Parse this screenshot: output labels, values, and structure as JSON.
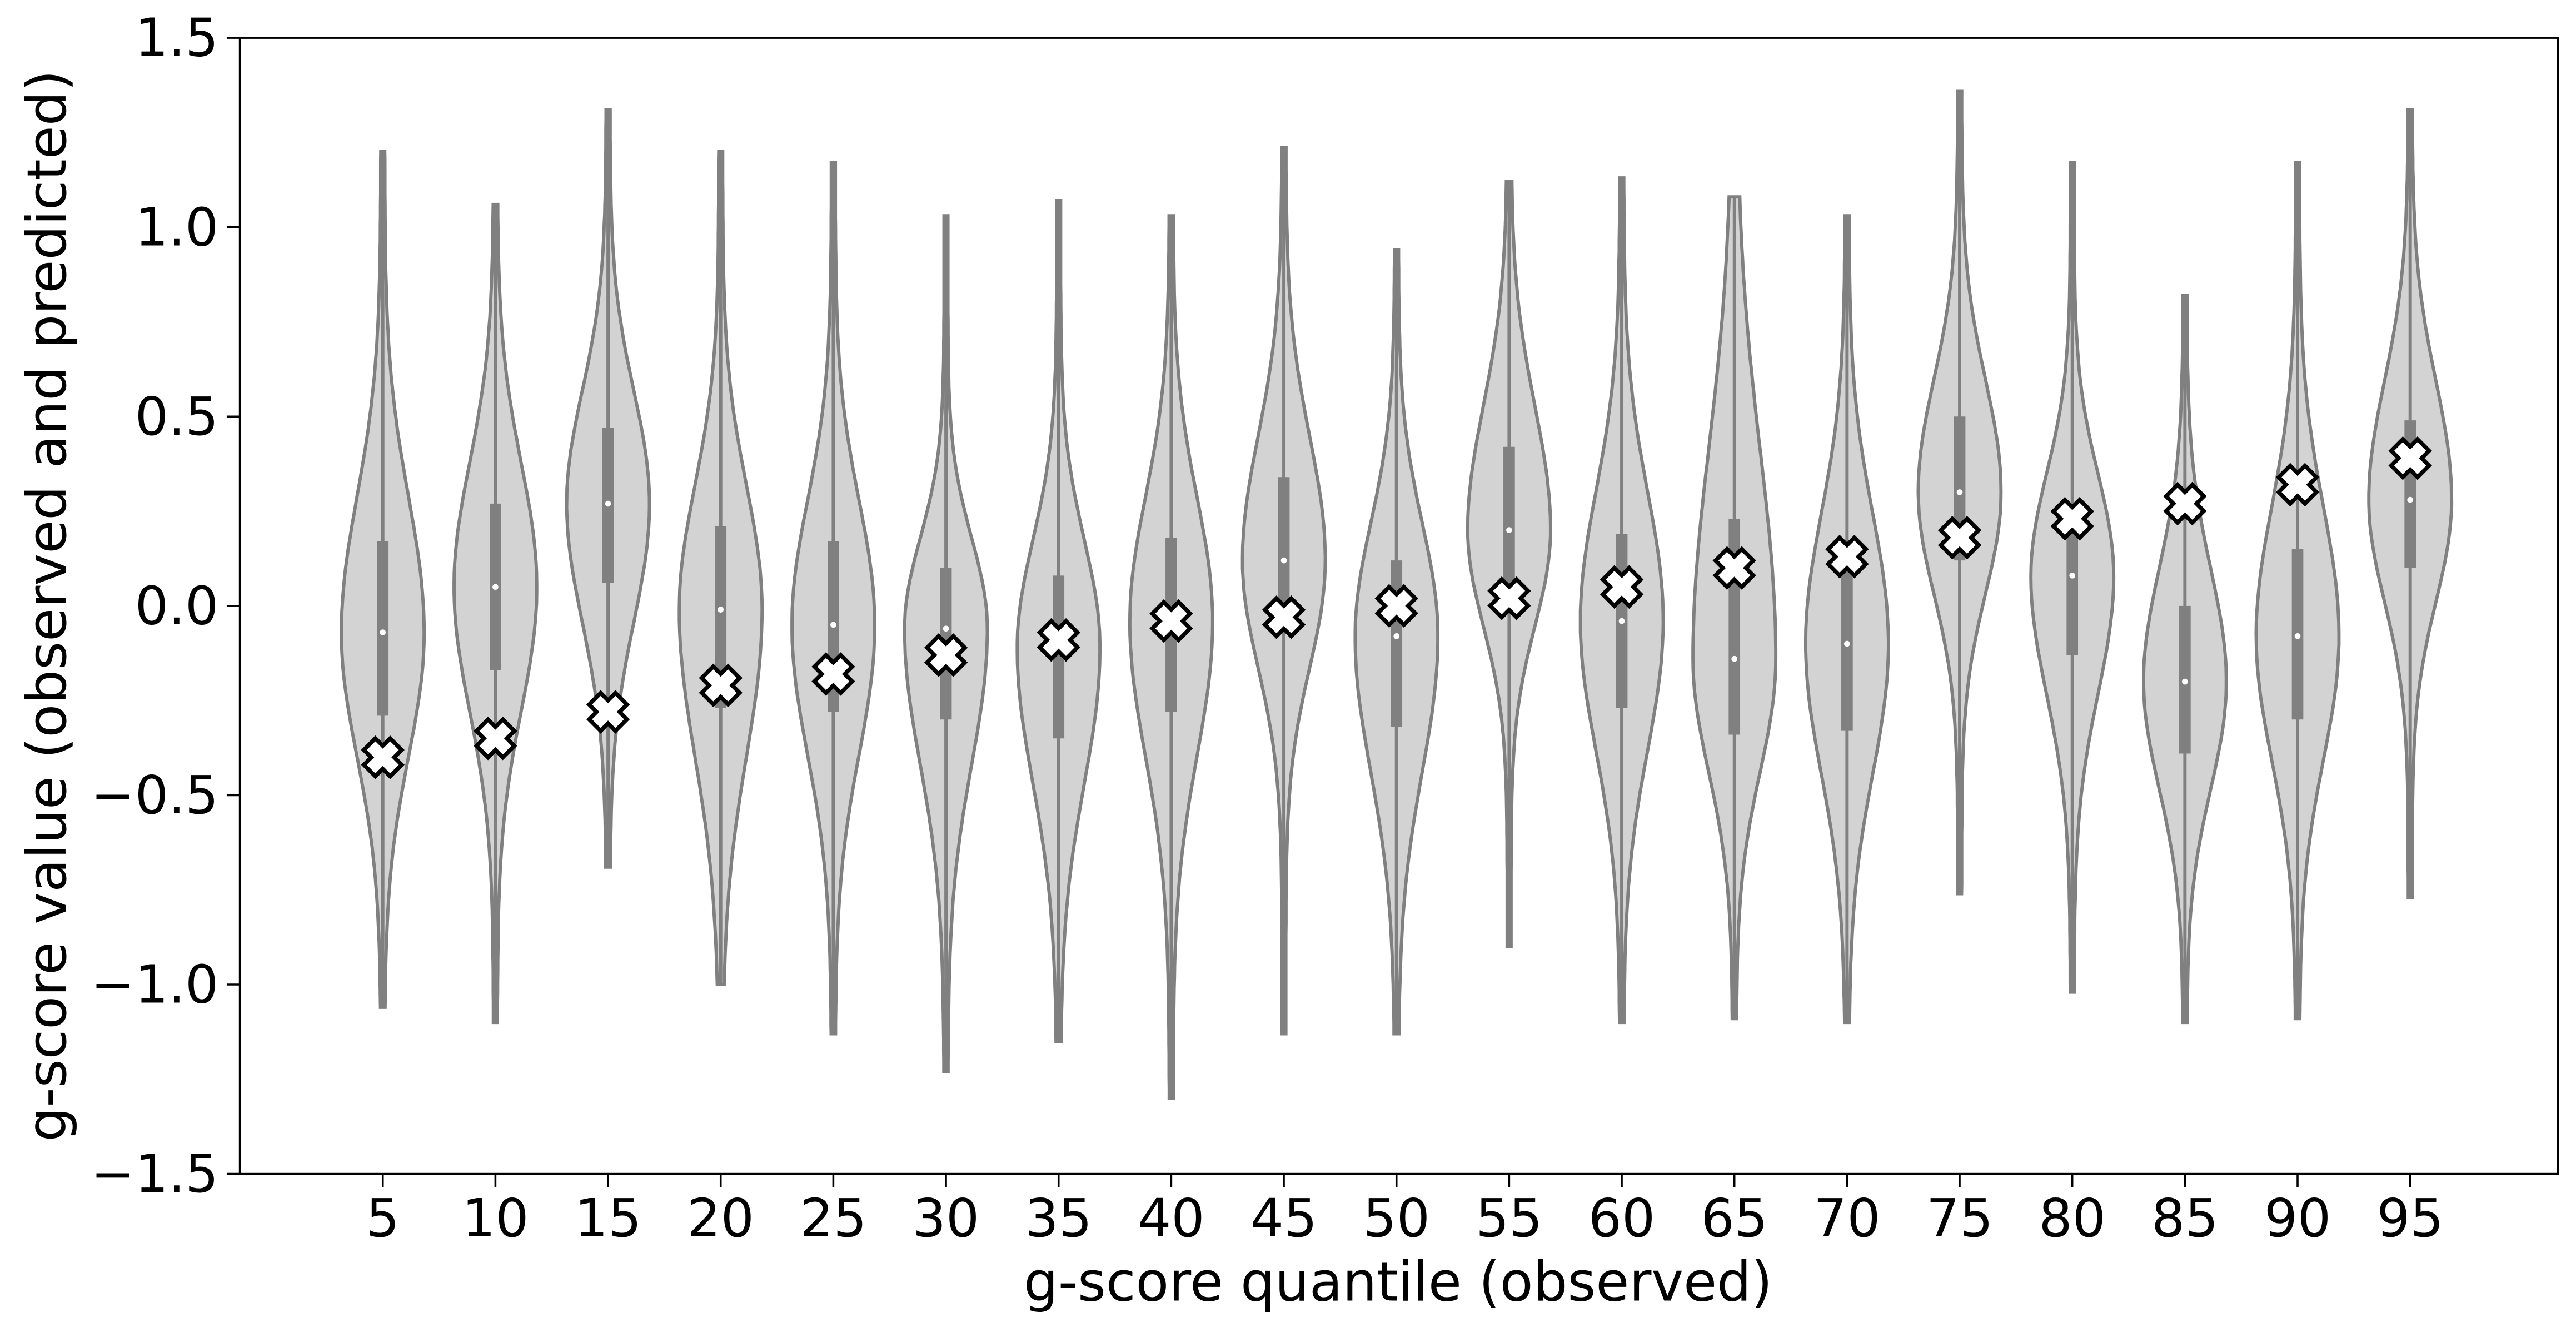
{
  "chart_data": {
    "type": "violin",
    "xlabel": "g-score quantile (observed)",
    "ylabel": "g-score value (observed and predicted)",
    "categories": [
      "5",
      "10",
      "15",
      "20",
      "25",
      "30",
      "35",
      "40",
      "45",
      "50",
      "55",
      "60",
      "65",
      "70",
      "75",
      "80",
      "85",
      "90",
      "95"
    ],
    "max": [
      1.2,
      1.06,
      1.31,
      1.2,
      1.17,
      1.03,
      1.07,
      1.03,
      1.21,
      0.94,
      1.12,
      1.13,
      1.08,
      1.03,
      1.36,
      1.17,
      0.82,
      1.17,
      1.31
    ],
    "q3": [
      0.17,
      0.27,
      0.47,
      0.21,
      0.17,
      0.1,
      0.08,
      0.18,
      0.34,
      0.12,
      0.42,
      0.19,
      0.23,
      0.13,
      0.5,
      0.26,
      0.0,
      0.15,
      0.49
    ],
    "median": [
      -0.07,
      0.05,
      0.27,
      -0.01,
      -0.05,
      -0.06,
      -0.11,
      -0.04,
      0.12,
      -0.08,
      0.2,
      -0.04,
      -0.14,
      -0.1,
      0.3,
      0.08,
      -0.2,
      -0.08,
      0.28
    ],
    "q1": [
      -0.29,
      -0.17,
      0.06,
      -0.27,
      -0.28,
      -0.3,
      -0.35,
      -0.28,
      -0.07,
      -0.32,
      0.03,
      -0.27,
      -0.34,
      -0.33,
      0.12,
      -0.13,
      -0.39,
      -0.3,
      0.1
    ],
    "min": [
      -1.06,
      -1.1,
      -0.69,
      -1.0,
      -1.13,
      -1.23,
      -1.15,
      -1.3,
      -1.13,
      -1.13,
      -0.9,
      -1.1,
      -1.09,
      -1.1,
      -0.76,
      -1.02,
      -1.1,
      -1.09,
      -0.77
    ],
    "markers": [
      -0.4,
      -0.35,
      -0.28,
      -0.21,
      -0.18,
      -0.13,
      -0.09,
      -0.04,
      -0.03,
      0.0,
      0.02,
      0.05,
      0.1,
      0.13,
      0.18,
      0.23,
      0.27,
      0.32,
      0.39
    ],
    "color": "#d3d3d3",
    "edge_color": "#808080",
    "marker_color": "#ffffff",
    "ylim": [
      -1.5,
      1.5
    ],
    "yticks": [
      {
        "value": -1.5,
        "label": "−1.5"
      },
      {
        "value": -1,
        "label": "−1.0"
      },
      {
        "value": -0.5,
        "label": "−0.5"
      },
      {
        "value": 0,
        "label": "0.0"
      },
      0.5,
      {
        "value": 1,
        "label": "1.0"
      },
      1.5
    ],
    "grid": false
  }
}
